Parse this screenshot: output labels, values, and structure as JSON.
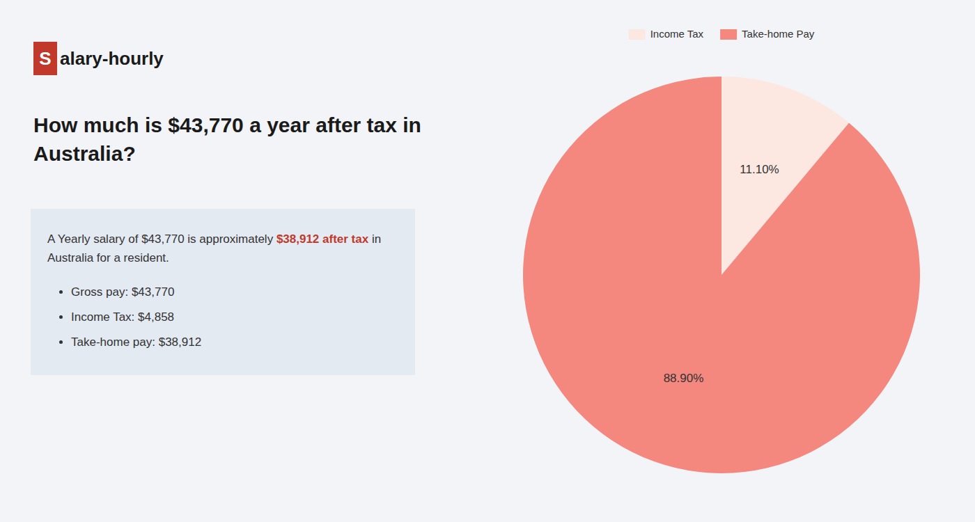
{
  "chart_data": {
    "type": "pie",
    "title": "How much is $43,770 a year after tax in Australia?",
    "categories": [
      "Income Tax",
      "Take-home Pay"
    ],
    "values": [
      11.1,
      88.9
    ],
    "value_labels": [
      "11.10%",
      "88.90%"
    ],
    "colors": [
      "#fce8e0",
      "#f4877e"
    ],
    "data_labels": true,
    "legend": "top",
    "annotations": [
      {
        "text": "S"
      },
      {
        "text": "alary-hourly"
      },
      {
        "text": "A Yearly salary of $43,770 is approximately "
      },
      {
        "text": "$38,912 after tax",
        "color": "#c0392b"
      },
      {
        "text": " in"
      },
      {
        "text": "Australia for a resident."
      },
      {
        "text": "Gross pay: $43,770"
      },
      {
        "text": "Income Tax: $4,858"
      },
      {
        "text": "Take-home pay: $38,912"
      }
    ]
  }
}
